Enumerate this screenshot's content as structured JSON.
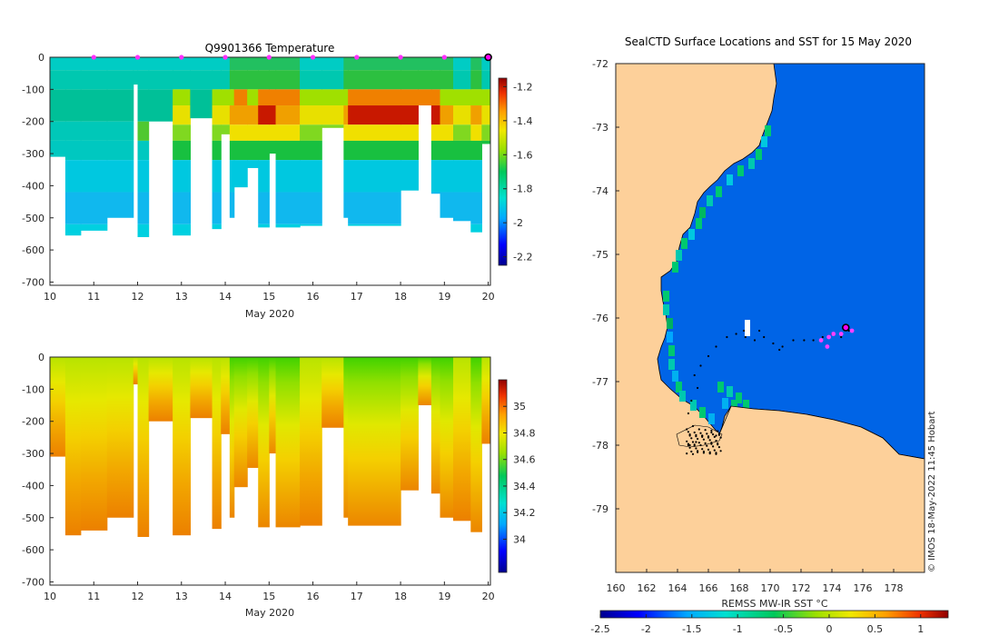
{
  "chart_data": [
    {
      "type": "heatmap",
      "title": "Q9901366  Temperature",
      "xlabel": "May 2020",
      "ylabel": "",
      "xlim": [
        10,
        20.05
      ],
      "ylim": [
        -710,
        0
      ],
      "xticks": [
        10,
        11,
        12,
        13,
        14,
        15,
        16,
        17,
        18,
        19,
        20
      ],
      "yticks": [
        0,
        -100,
        -200,
        -300,
        -400,
        -500,
        -600,
        -700
      ],
      "colorbar": {
        "range": [
          -2.25,
          -1.15
        ],
        "ticks": [
          -1.2,
          -1.4,
          -1.6,
          -1.8,
          -2,
          -2.2
        ]
      },
      "profile_markers_day": [
        11,
        12,
        13,
        14,
        15,
        16,
        17,
        18,
        19
      ],
      "current_marker_day": 20,
      "profiles": [
        {
          "day": 10.0,
          "depth": 310,
          "warm": 0
        },
        {
          "day": 10.35,
          "depth": 555,
          "warm": 0
        },
        {
          "day": 10.7,
          "depth": 540,
          "warm": 0.1
        },
        {
          "day": 11.3,
          "depth": 500,
          "warm": 0.15
        },
        {
          "day": 11.9,
          "depth": 85,
          "warm": 0
        },
        {
          "day": 12.0,
          "depth": 560,
          "warm": 0.25
        },
        {
          "day": 12.25,
          "depth": 200,
          "warm": 0.1
        },
        {
          "day": 12.8,
          "depth": 555,
          "warm": 0.35
        },
        {
          "day": 13.2,
          "depth": 190,
          "warm": 0.1
        },
        {
          "day": 13.7,
          "depth": 535,
          "warm": 0.4
        },
        {
          "day": 13.9,
          "depth": 240,
          "warm": 0.5
        },
        {
          "day": 14.1,
          "depth": 500,
          "warm": 0.85
        },
        {
          "day": 14.2,
          "depth": 405,
          "warm": 0.9
        },
        {
          "day": 14.5,
          "depth": 345,
          "warm": 0.7
        },
        {
          "day": 14.75,
          "depth": 530,
          "warm": 0.95
        },
        {
          "day": 15.0,
          "depth": 300,
          "warm": 1.0
        },
        {
          "day": 15.15,
          "depth": 530,
          "warm": 0.9
        },
        {
          "day": 15.7,
          "depth": 525,
          "warm": 0.5
        },
        {
          "day": 16.2,
          "depth": 220,
          "warm": 0.55
        },
        {
          "day": 16.7,
          "depth": 500,
          "warm": 0.65
        },
        {
          "day": 16.8,
          "depth": 525,
          "warm": 1.0
        },
        {
          "day": 18.0,
          "depth": 415,
          "warm": 1.0
        },
        {
          "day": 18.4,
          "depth": 150,
          "warm": 1.0
        },
        {
          "day": 18.7,
          "depth": 425,
          "warm": 1.0
        },
        {
          "day": 18.9,
          "depth": 500,
          "warm": 0.85
        },
        {
          "day": 19.2,
          "depth": 510,
          "warm": 0.55
        },
        {
          "day": 19.6,
          "depth": 545,
          "warm": 0.7
        },
        {
          "day": 19.85,
          "depth": 270,
          "warm": 0.6
        }
      ]
    },
    {
      "type": "heatmap",
      "title": "",
      "xlabel": "May 2020",
      "ylabel": "",
      "xlim": [
        10,
        20.05
      ],
      "ylim": [
        -710,
        0
      ],
      "xticks": [
        10,
        11,
        12,
        13,
        14,
        15,
        16,
        17,
        18,
        19,
        20
      ],
      "yticks": [
        0,
        -100,
        -200,
        -300,
        -400,
        -500,
        -600,
        -700
      ],
      "colorbar": {
        "range": [
          33.75,
          35.2
        ],
        "ticks": [
          35,
          34.8,
          34.6,
          34.4,
          34.2,
          34
        ]
      }
    },
    {
      "type": "heatmap",
      "title": "SealCTD Surface Locations and SST for 15 May 2020",
      "xlabel": "REMSS MW-IR SST °C",
      "ylabel": "",
      "xlim": [
        160,
        180
      ],
      "ylim": [
        -80,
        -72
      ],
      "xticks": [
        160,
        162,
        164,
        166,
        168,
        170,
        172,
        174,
        176,
        178
      ],
      "yticks": [
        -72,
        -73,
        -74,
        -75,
        -76,
        -77,
        -78,
        -79
      ],
      "colorbar": {
        "range": [
          -2.5,
          1.3
        ],
        "ticks": [
          -2.5,
          -2,
          -1.5,
          -1,
          -0.5,
          0,
          0.5,
          1
        ]
      },
      "sst_ocean_value": -1.9,
      "track_points": [
        [
          164.8,
          -78.0
        ],
        [
          165.2,
          -77.95
        ],
        [
          165.6,
          -77.85
        ],
        [
          166.2,
          -77.8
        ],
        [
          166.5,
          -77.85
        ],
        [
          165.0,
          -77.7
        ],
        [
          164.7,
          -77.5
        ],
        [
          164.9,
          -77.3
        ],
        [
          165.3,
          -77.1
        ],
        [
          165.1,
          -76.9
        ],
        [
          165.5,
          -76.75
        ],
        [
          166.0,
          -76.6
        ],
        [
          166.5,
          -76.45
        ],
        [
          167.2,
          -76.3
        ],
        [
          167.8,
          -76.25
        ],
        [
          168.4,
          -76.3
        ],
        [
          169.0,
          -76.35
        ],
        [
          169.6,
          -76.3
        ],
        [
          170.2,
          -76.4
        ],
        [
          170.8,
          -76.45
        ],
        [
          171.5,
          -76.35
        ],
        [
          172.2,
          -76.35
        ],
        [
          172.8,
          -76.35
        ],
        [
          173.4,
          -76.3
        ],
        [
          174.0,
          -76.25
        ],
        [
          174.6,
          -76.3
        ],
        [
          175.1,
          -76.2
        ],
        [
          168.3,
          -76.2
        ],
        [
          169.3,
          -76.2
        ],
        [
          170.6,
          -76.5
        ]
      ],
      "surface_locations": [
        [
          173.3,
          -76.35
        ],
        [
          173.8,
          -76.3
        ],
        [
          174.1,
          -76.25
        ],
        [
          174.6,
          -76.25
        ],
        [
          175.3,
          -76.2
        ],
        [
          173.7,
          -76.45
        ]
      ],
      "current_location": [
        174.9,
        -76.15
      ]
    }
  ],
  "credit": "© IMOS 18-May-2022 11:45 Hobart"
}
